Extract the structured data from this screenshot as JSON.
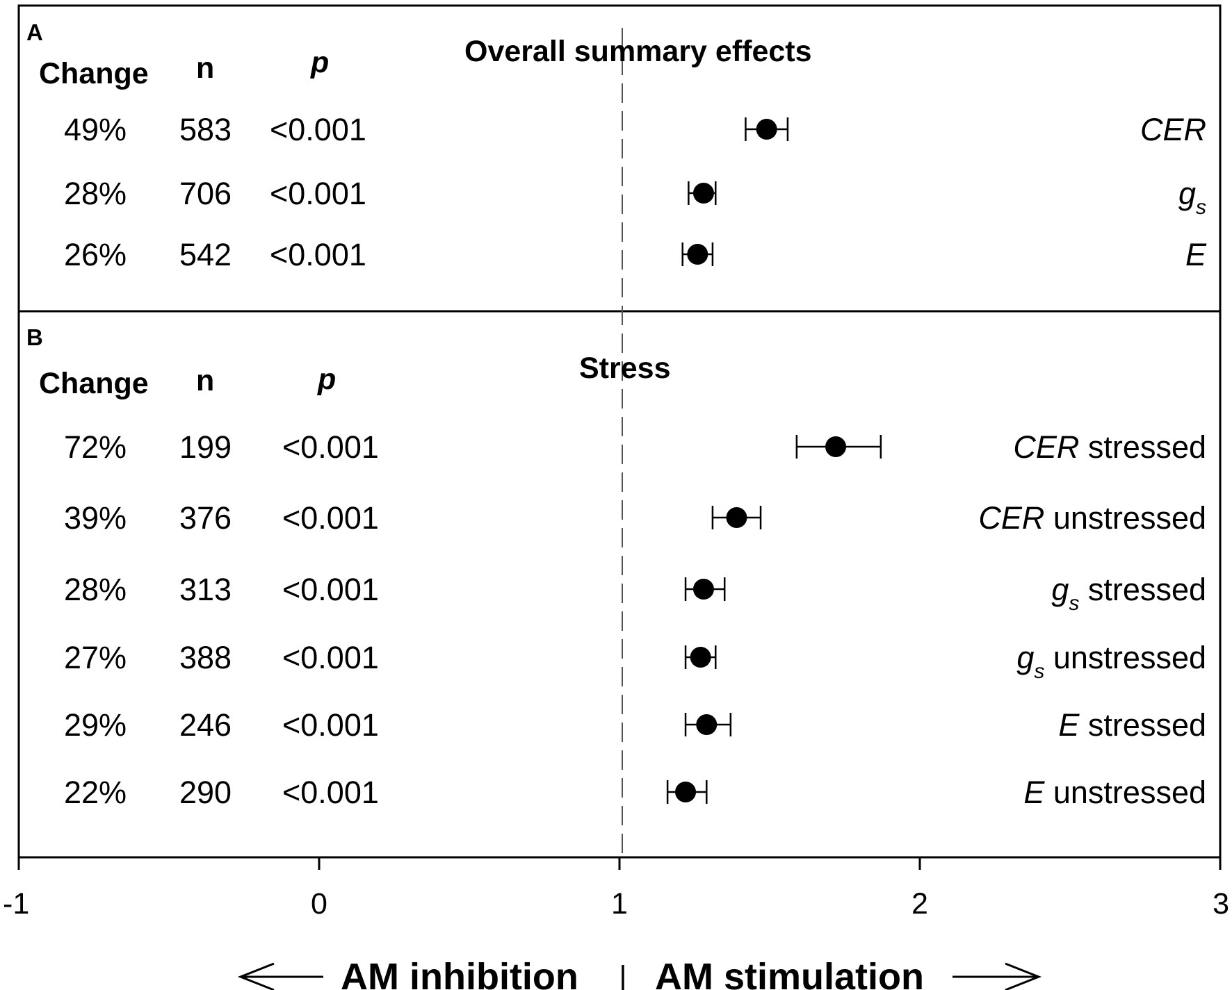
{
  "chart_data": {
    "type": "forest",
    "xlim": [
      -1,
      3
    ],
    "x_ticks": [
      "-1",
      "0",
      "1",
      "2",
      "3"
    ],
    "reference_line": 1,
    "direction_labels": {
      "left": "AM inhibition",
      "separator": "|",
      "right": "AM stimulation"
    },
    "panels": [
      {
        "label": "A",
        "title": "Overall summary effects",
        "headers": {
          "change": "Change",
          "n": "n",
          "p": "p"
        },
        "rows": [
          {
            "change": "49%",
            "n": "583",
            "p": "<0.001",
            "var": "CER",
            "sub": "",
            "suffix": "",
            "mean": 1.49,
            "lo": 1.42,
            "hi": 1.56
          },
          {
            "change": "28%",
            "n": "706",
            "p": "<0.001",
            "var": "g",
            "sub": "s",
            "suffix": "",
            "mean": 1.28,
            "lo": 1.23,
            "hi": 1.32
          },
          {
            "change": "26%",
            "n": "542",
            "p": "<0.001",
            "var": "E",
            "sub": "",
            "suffix": "",
            "mean": 1.26,
            "lo": 1.21,
            "hi": 1.31
          }
        ]
      },
      {
        "label": "B",
        "title": "Stress",
        "headers": {
          "change": "Change",
          "n": "n",
          "p": "p"
        },
        "rows": [
          {
            "change": "72%",
            "n": "199",
            "p": "<0.001",
            "var": "CER",
            "sub": "",
            "suffix": " stressed",
            "mean": 1.72,
            "lo": 1.59,
            "hi": 1.87
          },
          {
            "change": "39%",
            "n": "376",
            "p": "<0.001",
            "var": "CER",
            "sub": "",
            "suffix": " unstressed",
            "mean": 1.39,
            "lo": 1.31,
            "hi": 1.47
          },
          {
            "change": "28%",
            "n": "313",
            "p": "<0.001",
            "var": "g",
            "sub": "s",
            "suffix": " stressed",
            "mean": 1.28,
            "lo": 1.22,
            "hi": 1.35
          },
          {
            "change": "27%",
            "n": "388",
            "p": "<0.001",
            "var": "g",
            "sub": "s",
            "suffix": " unstressed",
            "mean": 1.27,
            "lo": 1.22,
            "hi": 1.32
          },
          {
            "change": "29%",
            "n": "246",
            "p": "<0.001",
            "var": "E",
            "sub": "",
            "suffix": " stressed",
            "mean": 1.29,
            "lo": 1.22,
            "hi": 1.37
          },
          {
            "change": "22%",
            "n": "290",
            "p": "<0.001",
            "var": "E",
            "sub": "",
            "suffix": " unstressed",
            "mean": 1.22,
            "lo": 1.16,
            "hi": 1.29
          }
        ]
      }
    ]
  }
}
